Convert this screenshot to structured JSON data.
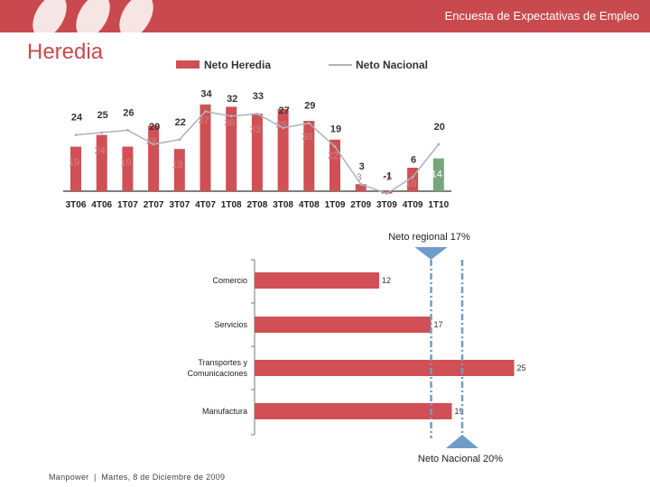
{
  "header": {
    "title": "Encuesta de Expectativas de Empleo"
  },
  "page_title": "Heredia",
  "footer": {
    "company": "Manpower",
    "date": "Martes, 8 de Diciembre de 2009"
  },
  "colors": {
    "brand": "#c94a4e",
    "bar": "#d05055",
    "highlight_bar": "#76a77c",
    "national_line": "#a9b4bd",
    "marker": "#6f9cc8"
  },
  "chart_data": [
    {
      "type": "bar",
      "title": "",
      "categories": [
        "3T06",
        "4T06",
        "1T07",
        "2T07",
        "3T07",
        "4T07",
        "1T08",
        "2T08",
        "3T08",
        "4T08",
        "1T09",
        "2T09",
        "3T09",
        "4T09",
        "1T10"
      ],
      "series": [
        {
          "name": "Neto Heredia",
          "kind": "bar",
          "values": [
            19,
            24,
            19,
            28,
            18,
            37,
            36,
            33,
            35,
            30,
            22,
            3,
            -1,
            10,
            14
          ]
        },
        {
          "name": "Neto Nacional",
          "kind": "line",
          "values": [
            24,
            25,
            26,
            20,
            22,
            34,
            32,
            33,
            27,
            29,
            19,
            3,
            -1,
            6,
            20
          ]
        }
      ],
      "highlight_category": "1T10",
      "legend": "top"
    },
    {
      "type": "bar",
      "orientation": "horizontal",
      "categories": [
        "Comercio",
        "Servicios",
        "Transportes y Comunicaciones",
        "Manufactura"
      ],
      "category_lines": [
        [
          "Comercio"
        ],
        [
          "Servicios"
        ],
        [
          "Transportes y",
          "Comunicaciones"
        ],
        [
          "Manufactura"
        ]
      ],
      "values": [
        12,
        17,
        25,
        19
      ],
      "xlim": [
        0,
        25
      ],
      "reference_lines": [
        {
          "label": "Neto regional 17%",
          "value": 17
        },
        {
          "label": "Neto Nacional 20%",
          "value": 20
        }
      ]
    }
  ]
}
